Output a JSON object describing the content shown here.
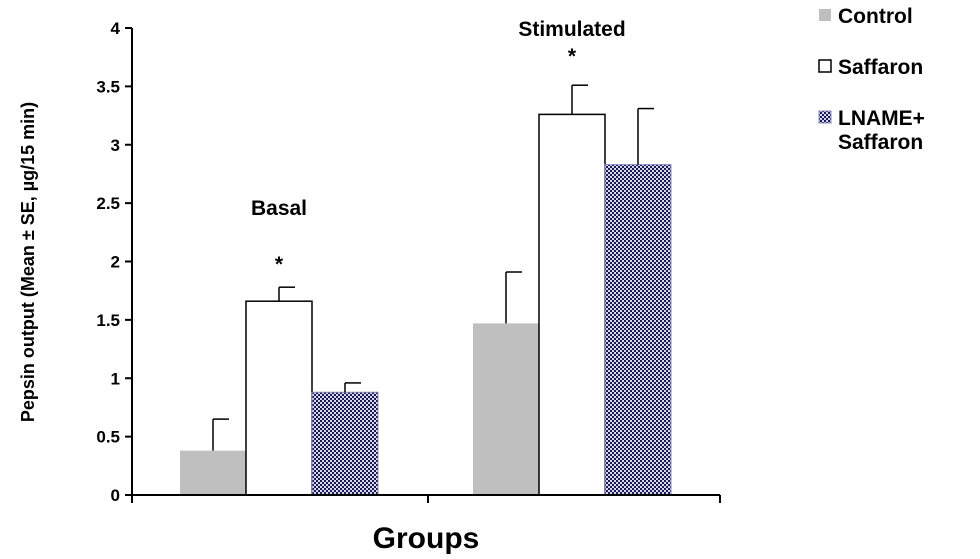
{
  "chart_data": {
    "type": "bar",
    "title": "",
    "xlabel": "Groups",
    "ylabel": "Pepsin output (Mean ± SE, µg/15 min)",
    "ylim": [
      0,
      4
    ],
    "yticks": [
      "0",
      "0.5",
      "1",
      "1.5",
      "2",
      "2.5",
      "3",
      "3.5",
      "4"
    ],
    "grid": false,
    "legend_position": "top-right",
    "categories": [
      "Basal",
      "Stimulated"
    ],
    "series": [
      {
        "name": "Control",
        "values": [
          0.38,
          1.47
        ],
        "errors": [
          0.27,
          0.44
        ],
        "color": "#bfbfbf",
        "pattern": "solid"
      },
      {
        "name": "Saffaron",
        "values": [
          1.66,
          3.26
        ],
        "errors": [
          0.12,
          0.25
        ],
        "color": "#ffffff",
        "pattern": "outline"
      },
      {
        "name": "LNAME+ Saffaron",
        "legend_lines": [
          "LNAME+",
          "Saffaron"
        ],
        "values": [
          0.88,
          2.83
        ],
        "errors": [
          0.08,
          0.48
        ],
        "color": "#1f1f5a",
        "pattern": "dotted"
      }
    ],
    "annotations": [
      {
        "text": "Basal",
        "category": 0,
        "y": 2.4
      },
      {
        "text": "*",
        "category": 0,
        "series": 1,
        "y": 1.92
      },
      {
        "text": "Stimulated",
        "category": 1,
        "y": 3.93
      },
      {
        "text": "*",
        "category": 1,
        "series": 1,
        "y": 3.7
      }
    ]
  }
}
